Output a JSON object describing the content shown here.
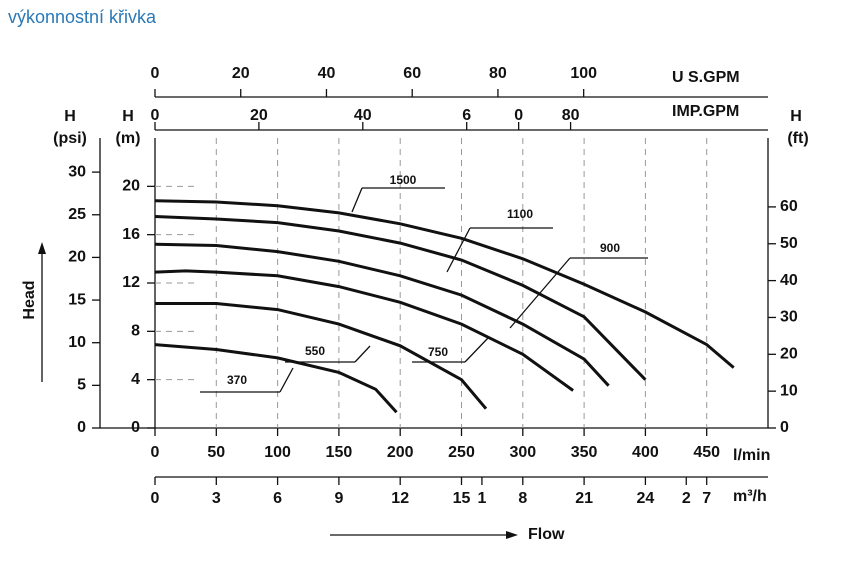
{
  "chart_data": {
    "type": "line",
    "title": "výkonnostní křivka",
    "x_label": "l/min",
    "xlim": [
      0,
      500
    ],
    "xticks": [
      0,
      50,
      100,
      150,
      200,
      250,
      300,
      350,
      400,
      450
    ],
    "y_label": "H",
    "y_unit": "(m)",
    "ylim": [
      0,
      24
    ],
    "yticks": [
      0,
      4,
      8,
      12,
      16,
      20
    ],
    "y_axis_title": "Head",
    "x_axis_title": "Flow",
    "grid": true,
    "psi_axis": {
      "label": "H",
      "unit": "(psi)",
      "lim": [
        0,
        34
      ],
      "ticks": [
        0,
        5,
        10,
        15,
        20,
        25,
        30
      ]
    },
    "ft_axis": {
      "label": "H",
      "unit": "(ft)",
      "lim": [
        0,
        78.7
      ],
      "ticks": [
        0,
        10,
        20,
        30,
        40,
        50,
        60
      ]
    },
    "us_gpm_axis": {
      "label": "U S.GPM",
      "lim": [
        0,
        143
      ],
      "ticks": [
        0,
        20,
        40,
        60,
        80,
        100
      ]
    },
    "imp_gpm_axis": {
      "label": "IMP.GPM",
      "lim": [
        0,
        118
      ],
      "ticks": [
        0,
        20,
        40,
        {
          "value": 60,
          "label": "6"
        },
        {
          "value": 70,
          "label": "0"
        },
        80
      ]
    },
    "m3h_axis": {
      "label": "m³/h",
      "lim": [
        0,
        30
      ],
      "ticks": [
        0,
        3,
        6,
        9,
        12,
        15,
        {
          "value": 16,
          "label": "1"
        },
        {
          "value": 18,
          "label": "8"
        },
        21,
        24,
        {
          "value": 26,
          "label": "2"
        },
        {
          "value": 27,
          "label": "7"
        }
      ]
    },
    "series": [
      {
        "name": "1500",
        "color": "#111111",
        "x": [
          0,
          50,
          100,
          150,
          200,
          250,
          300,
          350,
          400,
          450,
          472
        ],
        "values": [
          18.8,
          18.7,
          18.4,
          17.8,
          16.9,
          15.7,
          14.0,
          11.9,
          9.6,
          6.9,
          5.0
        ]
      },
      {
        "name": "1100",
        "color": "#111111",
        "x": [
          0,
          50,
          100,
          150,
          200,
          250,
          300,
          350,
          400
        ],
        "values": [
          17.5,
          17.3,
          17.0,
          16.3,
          15.3,
          13.9,
          11.8,
          9.2,
          4.0
        ]
      },
      {
        "name": "900",
        "color": "#111111",
        "x": [
          0,
          50,
          100,
          150,
          200,
          250,
          300,
          350,
          370
        ],
        "values": [
          15.2,
          15.1,
          14.6,
          13.8,
          12.6,
          11.0,
          8.6,
          5.7,
          3.5
        ]
      },
      {
        "name": "750",
        "color": "#111111",
        "x": [
          0,
          25,
          50,
          100,
          150,
          200,
          250,
          300,
          341
        ],
        "values": [
          12.9,
          13.0,
          12.9,
          12.6,
          11.7,
          10.4,
          8.6,
          6.1,
          3.1
        ]
      },
      {
        "name": "550",
        "color": "#111111",
        "x": [
          0,
          50,
          100,
          150,
          200,
          250,
          270
        ],
        "values": [
          10.3,
          10.3,
          9.8,
          8.6,
          6.8,
          4.0,
          1.6
        ]
      },
      {
        "name": "370",
        "color": "#111111",
        "x": [
          0,
          50,
          100,
          150,
          180,
          197
        ],
        "values": [
          6.9,
          6.5,
          5.8,
          4.6,
          3.2,
          1.3
        ]
      }
    ]
  }
}
